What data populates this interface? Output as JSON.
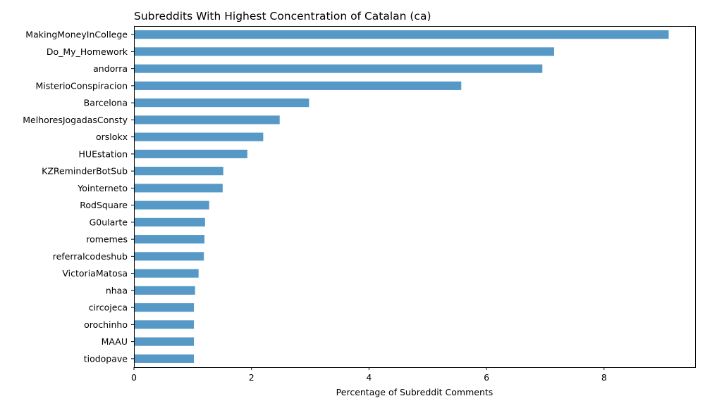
{
  "chart_data": {
    "type": "bar",
    "orientation": "horizontal",
    "title": "Subreddits With Highest Concentration of Catalan (ca)",
    "xlabel": "Percentage of Subreddit Comments",
    "ylabel": "",
    "xlim": [
      0,
      9.55
    ],
    "xticks": [
      0,
      2,
      4,
      6,
      8
    ],
    "grid": false,
    "bar_color": "#5699c6",
    "categories": [
      "MakingMoneyInCollege",
      "Do_My_Homework",
      "andorra",
      "MisterioConspiracion",
      "Barcelona",
      "MelhoresJogadasConsty",
      "orslokx",
      "HUEstation",
      "KZReminderBotSub",
      "Yointerneto",
      "RodSquare",
      "G0ularte",
      "romemes",
      "referralcodeshub",
      "VictoriaMatosa",
      "nhaa",
      "circojeca",
      "orochinho",
      "MAAU",
      "tiodopave"
    ],
    "values": [
      9.1,
      7.15,
      6.95,
      5.57,
      2.98,
      2.48,
      2.2,
      1.93,
      1.52,
      1.51,
      1.28,
      1.21,
      1.2,
      1.19,
      1.1,
      1.04,
      1.02,
      1.02,
      1.02,
      1.02
    ]
  }
}
